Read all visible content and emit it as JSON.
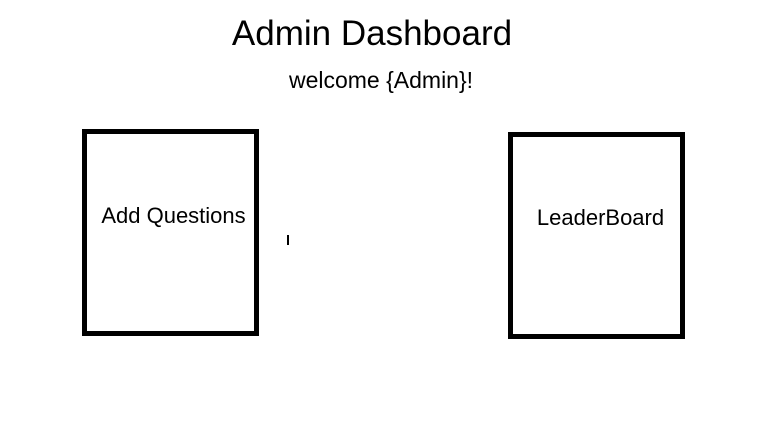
{
  "header": {
    "title": "Admin Dashboard",
    "welcome": "welcome {Admin}!"
  },
  "cards": {
    "add_questions": {
      "label": "Add Questions"
    },
    "leaderboard": {
      "label": "LeaderBoard"
    }
  }
}
